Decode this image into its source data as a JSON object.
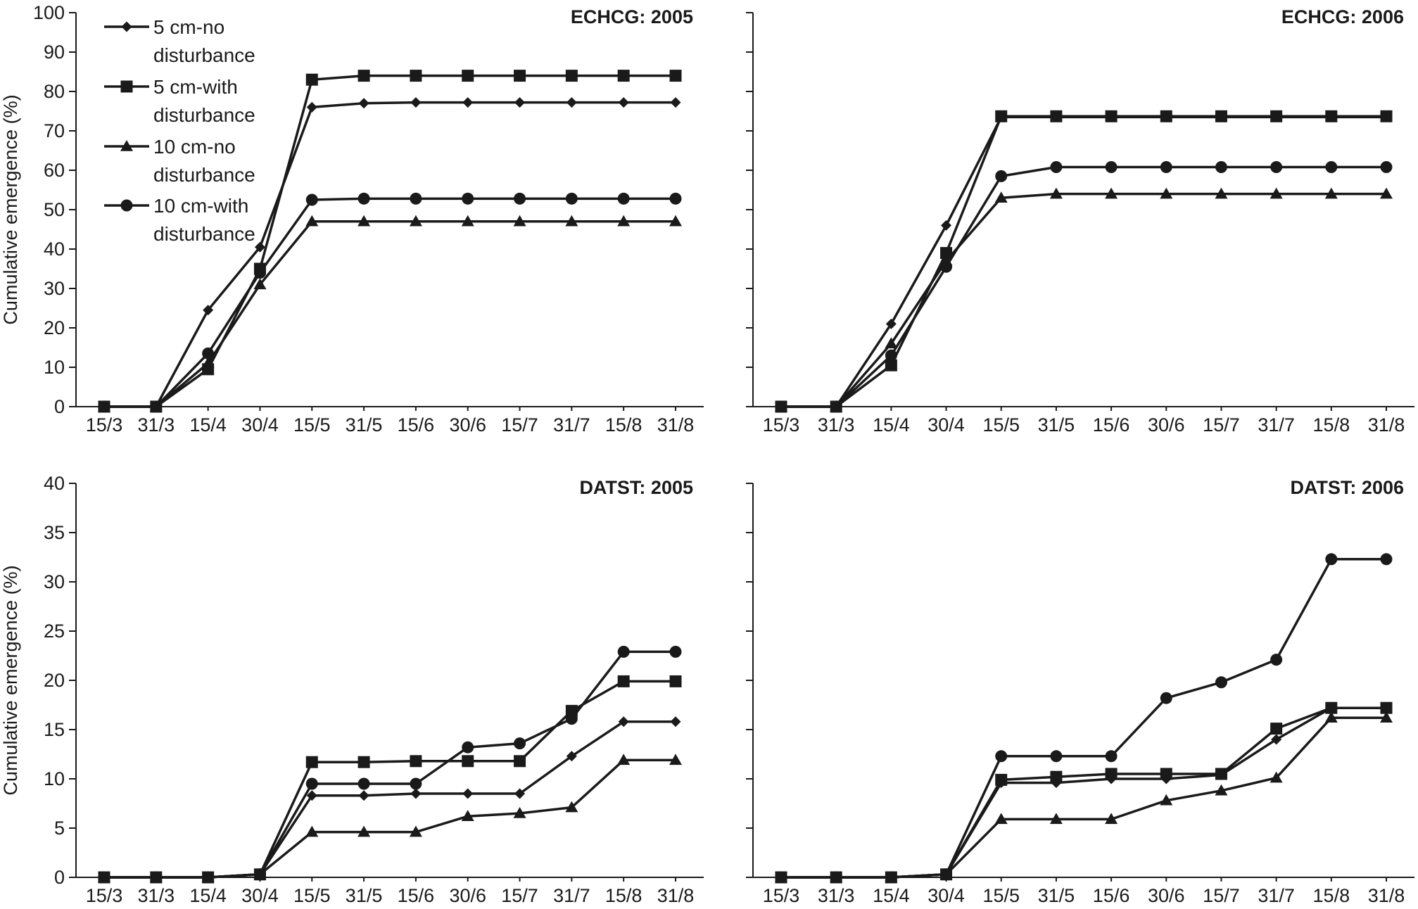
{
  "chart_data": [
    {
      "type": "line",
      "title": "ECHCG: 2005",
      "ylabel": "Cumulative emergence (%)",
      "ylim": [
        0,
        100
      ],
      "yticks": [
        0,
        10,
        20,
        30,
        40,
        50,
        60,
        70,
        80,
        90,
        100
      ],
      "categories": [
        "15/3",
        "31/3",
        "15/4",
        "30/4",
        "15/5",
        "31/5",
        "15/6",
        "30/6",
        "15/7",
        "31/7",
        "15/8",
        "31/8"
      ],
      "legend": "top-left",
      "series": [
        {
          "name": "5 cm-no disturbance",
          "marker": "diamond",
          "values": [
            0,
            0,
            24.5,
            40.5,
            76,
            77,
            77.2,
            77.2,
            77.2,
            77.2,
            77.2,
            77.2
          ]
        },
        {
          "name": "5 cm-with disturbance",
          "marker": "square",
          "values": [
            0,
            0,
            9.5,
            35,
            83,
            84,
            84,
            84,
            84,
            84,
            84,
            84
          ]
        },
        {
          "name": "10 cm-no disturbance",
          "marker": "triangle",
          "values": [
            0,
            0,
            11,
            31,
            47,
            47,
            47,
            47,
            47,
            47,
            47,
            47
          ]
        },
        {
          "name": "10 cm-with disturbance",
          "marker": "circle",
          "values": [
            0,
            0,
            13.5,
            34,
            52.5,
            52.8,
            52.8,
            52.8,
            52.8,
            52.8,
            52.8,
            52.8
          ]
        }
      ]
    },
    {
      "type": "line",
      "title": "ECHCG: 2006",
      "ylim": [
        0,
        100
      ],
      "categories": [
        "15/3",
        "31/3",
        "15/4",
        "30/4",
        "15/5",
        "31/5",
        "15/6",
        "30/6",
        "15/7",
        "31/7",
        "15/8",
        "31/8"
      ],
      "series": [
        {
          "marker": "diamond",
          "values": [
            0,
            0,
            21,
            46,
            73.5,
            73.5,
            73.5,
            73.5,
            73.5,
            73.5,
            73.5,
            73.5
          ]
        },
        {
          "marker": "square",
          "values": [
            0,
            0,
            10.5,
            39,
            73.7,
            73.7,
            73.7,
            73.7,
            73.7,
            73.7,
            73.7,
            73.7
          ]
        },
        {
          "marker": "triangle",
          "values": [
            0,
            0,
            16,
            37,
            53,
            54,
            54,
            54,
            54,
            54,
            54,
            54
          ]
        },
        {
          "marker": "circle",
          "values": [
            0,
            0,
            13,
            35.5,
            58.5,
            60.8,
            60.8,
            60.8,
            60.8,
            60.8,
            60.8,
            60.8
          ]
        }
      ]
    },
    {
      "type": "line",
      "title": "DATST: 2005",
      "ylabel": "Cumulative emergence (%)",
      "ylim": [
        0,
        40
      ],
      "yticks": [
        0,
        5,
        10,
        15,
        20,
        25,
        30,
        35,
        40
      ],
      "categories": [
        "15/3",
        "31/3",
        "15/4",
        "30/4",
        "15/5",
        "31/5",
        "15/6",
        "30/6",
        "15/7",
        "31/7",
        "15/8",
        "31/8"
      ],
      "series": [
        {
          "marker": "diamond",
          "values": [
            0,
            0,
            0,
            0.3,
            8.3,
            8.3,
            8.5,
            8.5,
            8.5,
            12.3,
            15.8,
            15.8
          ]
        },
        {
          "marker": "square",
          "values": [
            0,
            0,
            0,
            0.3,
            11.7,
            11.7,
            11.8,
            11.8,
            11.8,
            16.9,
            19.9,
            19.9
          ]
        },
        {
          "marker": "triangle",
          "values": [
            0,
            0,
            0,
            0.3,
            4.6,
            4.6,
            4.6,
            6.2,
            6.5,
            7.1,
            11.9,
            11.9
          ]
        },
        {
          "marker": "circle",
          "values": [
            0,
            0,
            0,
            0.3,
            9.5,
            9.5,
            9.5,
            13.2,
            13.6,
            16.1,
            22.9,
            22.9
          ]
        }
      ]
    },
    {
      "type": "line",
      "title": "DATST: 2006",
      "ylim": [
        0,
        40
      ],
      "categories": [
        "15/3",
        "31/3",
        "15/4",
        "30/4",
        "15/5",
        "31/5",
        "15/6",
        "30/6",
        "15/7",
        "31/7",
        "15/8",
        "31/8"
      ],
      "series": [
        {
          "marker": "diamond",
          "values": [
            0,
            0,
            0,
            0.3,
            9.6,
            9.6,
            10,
            10,
            10.4,
            14,
            17.2,
            17.2
          ]
        },
        {
          "marker": "square",
          "values": [
            0,
            0,
            0,
            0.3,
            9.9,
            10.2,
            10.5,
            10.5,
            10.5,
            15.1,
            17.2,
            17.2
          ]
        },
        {
          "marker": "triangle",
          "values": [
            0,
            0,
            0,
            0.3,
            5.9,
            5.9,
            5.9,
            7.8,
            8.8,
            10.1,
            16.2,
            16.2
          ]
        },
        {
          "marker": "circle",
          "values": [
            0,
            0,
            0,
            0.3,
            12.3,
            12.3,
            12.3,
            18.2,
            19.8,
            22.1,
            32.3,
            32.3
          ]
        }
      ]
    }
  ],
  "legend": {
    "items": [
      {
        "marker": "diamond",
        "line1": "5 cm-no",
        "line2": "disturbance"
      },
      {
        "marker": "square",
        "line1": "5 cm-with",
        "line2": "disturbance"
      },
      {
        "marker": "triangle",
        "line1": "10 cm-no",
        "line2": "disturbance"
      },
      {
        "marker": "circle",
        "line1": "10 cm-with",
        "line2": "disturbance"
      }
    ]
  }
}
